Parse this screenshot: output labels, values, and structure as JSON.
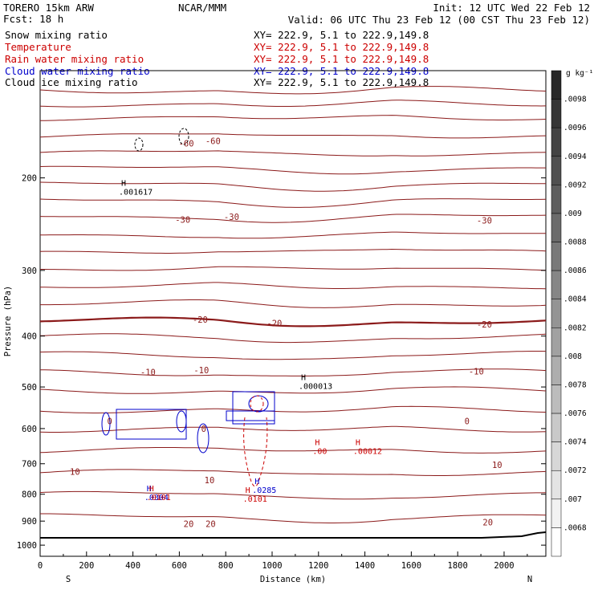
{
  "header": {
    "model": "TORERO  15km ARW",
    "fcst": "Fcst:   18 h",
    "center": "NCAR/MMM",
    "init": "Init: 12 UTC Wed 22 Feb 12",
    "valid": "Valid: 06 UTC Thu 23 Feb 12 (00 CST Thu 23 Feb 12)"
  },
  "fields": [
    {
      "name": "Snow mixing ratio",
      "xy": "XY= 222.9,   5.1 to 222.9,149.8",
      "color": "#000000"
    },
    {
      "name": "Temperature",
      "xy": "XY= 222.9,   5.1 to 222.9,149.8",
      "color": "#cc0000"
    },
    {
      "name": "Rain water mixing ratio",
      "xy": "XY= 222.9,   5.1 to 222.9,149.8",
      "color": "#cc0000"
    },
    {
      "name": "Cloud water mixing ratio",
      "xy": "XY= 222.9,   5.1 to 222.9,149.8",
      "color": "#0000cc"
    },
    {
      "name": "Cloud ice mixing ratio",
      "xy": "XY= 222.9,   5.1 to 222.9,149.8",
      "color": "#000000"
    }
  ],
  "chart_data": {
    "type": "contour",
    "xlabel": "Distance (km)",
    "ylabel": "Pressure (hPa)",
    "xlim": [
      0,
      2180
    ],
    "ylim": [
      1050,
      125
    ],
    "y_scale": "log",
    "x_ticks": [
      0,
      200,
      400,
      600,
      800,
      1000,
      1200,
      1400,
      1600,
      1800,
      2000
    ],
    "y_ticks": [
      200,
      300,
      400,
      500,
      600,
      700,
      800,
      900,
      1000
    ],
    "x_end_labels": {
      "left": "S",
      "right": "N"
    },
    "colorbar": {
      "unit": "g kg⁻¹",
      "labels": [
        ".0098",
        ".0096",
        ".0094",
        ".0092",
        ".009",
        ".0088",
        ".0086",
        ".0084",
        ".0082",
        ".008",
        ".0078",
        ".0076",
        ".0074",
        ".0072",
        ".007",
        ".0068"
      ]
    },
    "temperature_labels": [
      {
        "text": "-60",
        "x": 630,
        "p": 172
      },
      {
        "text": "-60",
        "x": 745,
        "p": 170
      },
      {
        "text": "-30",
        "x": 615,
        "p": 240
      },
      {
        "text": "-30",
        "x": 825,
        "p": 237
      },
      {
        "text": "-30",
        "x": 1915,
        "p": 241
      },
      {
        "text": "-20",
        "x": 690,
        "p": 372
      },
      {
        "text": "-20",
        "x": 1010,
        "p": 378
      },
      {
        "text": "-20",
        "x": 1915,
        "p": 380
      },
      {
        "text": "-10",
        "x": 465,
        "p": 468
      },
      {
        "text": "-10",
        "x": 695,
        "p": 464
      },
      {
        "text": "-10",
        "x": 1880,
        "p": 467
      },
      {
        "text": "0",
        "x": 300,
        "p": 580
      },
      {
        "text": "0",
        "x": 705,
        "p": 600
      },
      {
        "text": "0",
        "x": 1840,
        "p": 580
      },
      {
        "text": "10",
        "x": 150,
        "p": 725
      },
      {
        "text": "10",
        "x": 730,
        "p": 752
      },
      {
        "text": "10",
        "x": 1970,
        "p": 703
      },
      {
        "text": "20",
        "x": 640,
        "p": 910
      },
      {
        "text": "20",
        "x": 735,
        "p": 910
      },
      {
        "text": "20",
        "x": 1930,
        "p": 904
      }
    ],
    "extrema_markers": [
      {
        "letter": "H",
        "value": ".001617",
        "x": 360,
        "p": 207,
        "field": "Snow mixing ratio"
      },
      {
        "letter": "H",
        "value": ".000013",
        "x": 1135,
        "p": 485,
        "field": "Cloud ice mixing ratio"
      },
      {
        "letter": "H",
        "value": ".00",
        "x": 1195,
        "p": 645,
        "field": "Rain water mixing ratio"
      },
      {
        "letter": "H",
        "value": ".00012",
        "x": 1370,
        "p": 645,
        "field": "Rain water mixing ratio"
      },
      {
        "letter": "H",
        "value": ".0101",
        "x": 895,
        "p": 795,
        "field": "Rain water mixing ratio"
      },
      {
        "letter": "H",
        "value": ".0285",
        "x": 935,
        "p": 765,
        "field": "Cloud water mixing ratio"
      },
      {
        "letter": "H",
        "value": ".0304",
        "x": 470,
        "p": 790,
        "field": "Cloud water mixing ratio"
      },
      {
        "letter": "H",
        "value": ".0101",
        "x": 480,
        "p": 790,
        "field": "Rain water mixing ratio"
      }
    ]
  }
}
